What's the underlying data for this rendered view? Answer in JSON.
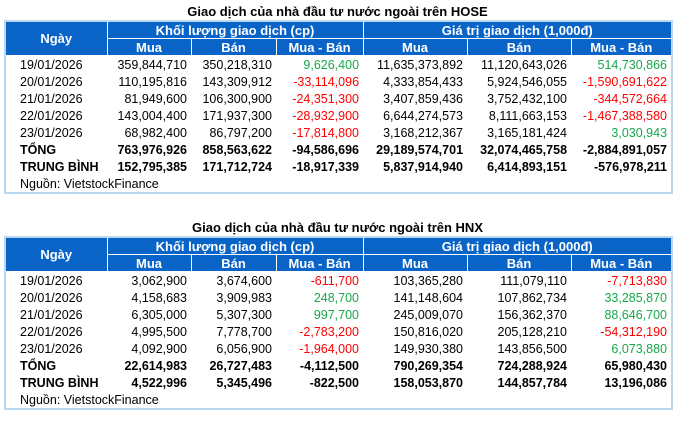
{
  "colors": {
    "header_bg": "#0a64c8",
    "positive": "#17a84a",
    "negative": "#ff0000"
  },
  "headers": {
    "date": "Ngày",
    "volume": "Khối lượng giao dịch (cp)",
    "value": "Giá trị giao dịch (1,000đ)",
    "buy": "Mua",
    "sell": "Bán",
    "net": "Mua - Bán"
  },
  "tables": [
    {
      "title": "Giao dịch của nhà đầu tư nước ngoài trên HOSE",
      "rows": [
        [
          "19/01/2026",
          "359,844,710",
          "350,218,310",
          "9,626,400",
          "11,635,373,892",
          "11,120,643,026",
          "514,730,866"
        ],
        [
          "20/01/2026",
          "110,195,816",
          "143,309,912",
          "-33,114,096",
          "4,333,854,433",
          "5,924,546,055",
          "-1,590,691,622"
        ],
        [
          "21/01/2026",
          "81,949,600",
          "106,300,900",
          "-24,351,300",
          "3,407,859,436",
          "3,752,432,100",
          "-344,572,664"
        ],
        [
          "22/01/2026",
          "143,004,400",
          "171,937,300",
          "-28,932,900",
          "6,644,274,573",
          "8,111,663,153",
          "-1,467,388,580"
        ],
        [
          "23/01/2026",
          "68,982,400",
          "86,797,200",
          "-17,814,800",
          "3,168,212,367",
          "3,165,181,424",
          "3,030,943"
        ]
      ],
      "total": [
        "TỔNG",
        "763,976,926",
        "858,563,622",
        "-94,586,696",
        "29,189,574,701",
        "32,074,465,758",
        "-2,884,891,057"
      ],
      "average": [
        "TRUNG BÌNH",
        "152,795,385",
        "171,712,724",
        "-18,917,339",
        "5,837,914,940",
        "6,414,893,151",
        "-576,978,211"
      ],
      "source": "Nguồn: VietstockFinance"
    },
    {
      "title": "Giao dịch của nhà đầu tư nước ngoài trên HNX",
      "rows": [
        [
          "19/01/2026",
          "3,062,900",
          "3,674,600",
          "-611,700",
          "103,365,280",
          "111,079,110",
          "-7,713,830"
        ],
        [
          "20/01/2026",
          "4,158,683",
          "3,909,983",
          "248,700",
          "141,148,604",
          "107,862,734",
          "33,285,870"
        ],
        [
          "21/01/2026",
          "6,305,000",
          "5,307,300",
          "997,700",
          "245,009,070",
          "156,362,370",
          "88,646,700"
        ],
        [
          "22/01/2026",
          "4,995,500",
          "7,778,700",
          "-2,783,200",
          "150,816,020",
          "205,128,210",
          "-54,312,190"
        ],
        [
          "23/01/2026",
          "4,092,900",
          "6,056,900",
          "-1,964,000",
          "149,930,380",
          "143,856,500",
          "6,073,880"
        ]
      ],
      "total": [
        "TỔNG",
        "22,614,983",
        "26,727,483",
        "-4,112,500",
        "790,269,354",
        "724,288,924",
        "65,980,430"
      ],
      "average": [
        "TRUNG BÌNH",
        "4,522,996",
        "5,345,496",
        "-822,500",
        "158,053,870",
        "144,857,784",
        "13,196,086"
      ],
      "source": "Nguồn: VietstockFinance"
    }
  ]
}
